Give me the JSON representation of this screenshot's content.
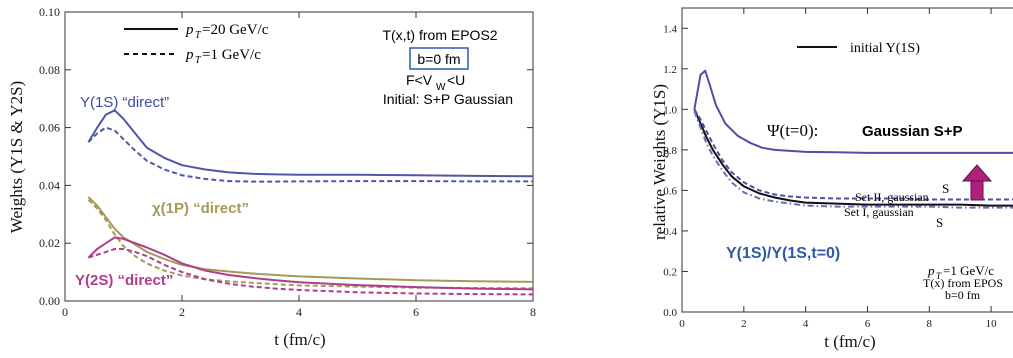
{
  "chart_data": [
    {
      "type": "line",
      "xlabel": "t (fm/c)",
      "ylabel": "Weights (Y1S & Y2S)",
      "xlim": [
        0,
        8
      ],
      "ylim": [
        0,
        0.1
      ],
      "x_ticks": [
        "0",
        "2",
        "4",
        "6",
        "8"
      ],
      "y_ticks": [
        "0.00",
        "0.02",
        "0.04",
        "0.06",
        "0.08",
        "0.10"
      ],
      "legend": [
        {
          "style": "solid",
          "label_main": "p",
          "label_sub": "T",
          "label_rest": "=20 GeV/c"
        },
        {
          "style": "dashed",
          "label_main": "p",
          "label_sub": "T",
          "label_rest": "=1 GeV/c"
        }
      ],
      "info": {
        "line1": "T(x,t) from EPOS2",
        "boxed": "b=0 fm",
        "line3_pre": "F<V",
        "line3_sub": "W",
        "line3_post": "<U",
        "line4": "Initial: S+P Gaussian"
      },
      "labels": {
        "y1s": "Y(1S) “direct”",
        "chi": "χ(1P) “direct”",
        "y2s": "Y(2S) “direct”"
      },
      "colors": {
        "y1s": "#5056a8",
        "chi": "#a59a5a",
        "y2s": "#b03c8c",
        "legend": "#111111",
        "box": "#2e5aa8"
      },
      "series": [
        {
          "style": "solid",
          "color": "#5056a8",
          "x": [
            0.4,
            0.55,
            0.7,
            0.85,
            1.0,
            1.2,
            1.4,
            1.7,
            2.0,
            2.4,
            2.8,
            3.2,
            3.6,
            4.0,
            5.0,
            6.0,
            7.0,
            8.0
          ],
          "y": [
            0.055,
            0.06,
            0.0645,
            0.066,
            0.063,
            0.058,
            0.053,
            0.0495,
            0.047,
            0.0455,
            0.0445,
            0.044,
            0.0438,
            0.0437,
            0.0437,
            0.0435,
            0.0433,
            0.0432
          ]
        },
        {
          "style": "dashed",
          "color": "#5056a8",
          "x": [
            0.4,
            0.55,
            0.7,
            0.85,
            1.0,
            1.2,
            1.4,
            1.7,
            2.0,
            2.4,
            2.8,
            3.2,
            3.6,
            4.0,
            5.0,
            6.0,
            7.0,
            8.0
          ],
          "y": [
            0.055,
            0.058,
            0.06,
            0.059,
            0.056,
            0.052,
            0.0485,
            0.0455,
            0.0435,
            0.0422,
            0.0415,
            0.0413,
            0.0413,
            0.0414,
            0.0415,
            0.0415,
            0.0414,
            0.0414
          ]
        },
        {
          "style": "solid",
          "color": "#a59a5a",
          "x": [
            0.4,
            0.55,
            0.7,
            0.85,
            1.0,
            1.2,
            1.4,
            1.7,
            2.0,
            2.4,
            2.8,
            3.2,
            3.6,
            4.0,
            5.0,
            6.0,
            7.0,
            8.0
          ],
          "y": [
            0.036,
            0.033,
            0.029,
            0.025,
            0.022,
            0.0195,
            0.017,
            0.0145,
            0.0125,
            0.011,
            0.0102,
            0.0095,
            0.009,
            0.0085,
            0.0078,
            0.0072,
            0.0068,
            0.0066
          ]
        },
        {
          "style": "dashed",
          "color": "#a59a5a",
          "x": [
            0.4,
            0.55,
            0.7,
            0.85,
            1.0,
            1.2,
            1.4,
            1.7,
            2.0,
            2.4,
            2.8,
            3.2,
            3.6,
            4.0,
            5.0,
            6.0,
            7.0,
            8.0
          ],
          "y": [
            0.035,
            0.032,
            0.028,
            0.023,
            0.019,
            0.0155,
            0.013,
            0.0105,
            0.0088,
            0.0075,
            0.0068,
            0.0063,
            0.0058,
            0.0054,
            0.005,
            0.0046,
            0.0045,
            0.0044
          ]
        },
        {
          "style": "solid",
          "color": "#b03c8c",
          "x": [
            0.4,
            0.55,
            0.7,
            0.85,
            1.0,
            1.2,
            1.4,
            1.7,
            2.0,
            2.4,
            2.8,
            3.2,
            3.6,
            4.0,
            5.0,
            6.0,
            7.0,
            8.0
          ],
          "y": [
            0.015,
            0.018,
            0.02,
            0.022,
            0.0215,
            0.02,
            0.0185,
            0.016,
            0.013,
            0.0105,
            0.009,
            0.008,
            0.0072,
            0.0065,
            0.0055,
            0.0048,
            0.0043,
            0.004
          ]
        },
        {
          "style": "dashed",
          "color": "#b03c8c",
          "x": [
            0.4,
            0.55,
            0.7,
            0.85,
            1.0,
            1.2,
            1.4,
            1.7,
            2.0,
            2.4,
            2.8,
            3.2,
            3.6,
            4.0,
            5.0,
            6.0,
            7.0,
            8.0
          ],
          "y": [
            0.015,
            0.016,
            0.017,
            0.018,
            0.018,
            0.017,
            0.0155,
            0.0125,
            0.01,
            0.0075,
            0.006,
            0.005,
            0.0043,
            0.0038,
            0.003,
            0.0026,
            0.0024,
            0.0023
          ]
        }
      ]
    },
    {
      "type": "line",
      "xlabel": "t (fm/c)",
      "ylabel": "relative Weights (Y1S)",
      "xlim": [
        0,
        11
      ],
      "ylim": [
        0,
        1.5
      ],
      "x_ticks": [
        "0",
        "2",
        "4",
        "6",
        "8",
        "10"
      ],
      "y_ticks": [
        "0.0",
        "0.2",
        "0.4",
        "0.6",
        "0.8",
        "1.0",
        "1.2",
        "1.4"
      ],
      "legend": [
        {
          "style": "solid",
          "label": "initial Y(1S)"
        }
      ],
      "labels": {
        "psi_pre": "Ψ(t=0): ",
        "psi_bold": "Gaussian S+P",
        "set2": "Set II, gaussian",
        "set2_s": "S",
        "set1": "Set I, gaussian",
        "set1_s": "S",
        "ratio": "Y(1S)/Y(1S,t=0)",
        "pt_main": "p",
        "pt_sub": "T",
        "pt_rest": "=1 GeV/c",
        "tx": "T(x) from EPOS",
        "b": "b=0 fm"
      },
      "colors": {
        "upper": "#4d4fa8",
        "black": "#111111",
        "lower": "#6a6cba",
        "arrow": "#b0207e",
        "ratio_text": "#2e5aa8"
      },
      "series": [
        {
          "style": "solid",
          "color": "#4d4fa8",
          "x": [
            0.4,
            0.6,
            0.75,
            0.9,
            1.1,
            1.4,
            1.8,
            2.2,
            2.6,
            3.0,
            3.5,
            4.0,
            5.0,
            6.0,
            7.0,
            8.0,
            9.0,
            10.0,
            11.0
          ],
          "y": [
            1.0,
            1.17,
            1.19,
            1.12,
            1.02,
            0.93,
            0.87,
            0.835,
            0.81,
            0.8,
            0.795,
            0.79,
            0.788,
            0.785,
            0.785,
            0.785,
            0.785,
            0.785,
            0.785
          ]
        },
        {
          "style": "solid",
          "color": "#111111",
          "x": [
            0.4,
            0.6,
            0.8,
            1.0,
            1.3,
            1.6,
            2.0,
            2.5,
            3.0,
            3.5,
            4.0,
            5.0,
            6.0,
            7.0,
            8.0,
            9.0,
            10.0,
            11.0
          ],
          "y": [
            1.0,
            0.93,
            0.86,
            0.8,
            0.73,
            0.67,
            0.62,
            0.585,
            0.565,
            0.55,
            0.54,
            0.535,
            0.53,
            0.53,
            0.53,
            0.53,
            0.525,
            0.525
          ]
        },
        {
          "style": "dashed",
          "color": "#4d4fa8",
          "x": [
            0.4,
            0.6,
            0.8,
            1.0,
            1.3,
            1.6,
            2.0,
            2.5,
            3.0,
            3.5,
            4.0,
            5.0,
            6.0,
            7.0,
            8.0,
            9.0,
            10.0,
            11.0
          ],
          "y": [
            1.0,
            0.95,
            0.89,
            0.83,
            0.75,
            0.69,
            0.64,
            0.6,
            0.58,
            0.57,
            0.565,
            0.56,
            0.56,
            0.56,
            0.555,
            0.555,
            0.555,
            0.555
          ]
        },
        {
          "style": "dashdot",
          "color": "#6a6cba",
          "x": [
            0.4,
            0.6,
            0.8,
            1.0,
            1.3,
            1.6,
            2.0,
            2.5,
            3.0,
            3.5,
            4.0,
            5.0,
            6.0,
            7.0,
            8.0,
            9.0,
            10.0,
            11.0
          ],
          "y": [
            0.99,
            0.91,
            0.83,
            0.77,
            0.7,
            0.64,
            0.59,
            0.56,
            0.545,
            0.535,
            0.525,
            0.52,
            0.52,
            0.52,
            0.52,
            0.515,
            0.515,
            0.515
          ]
        }
      ]
    }
  ]
}
